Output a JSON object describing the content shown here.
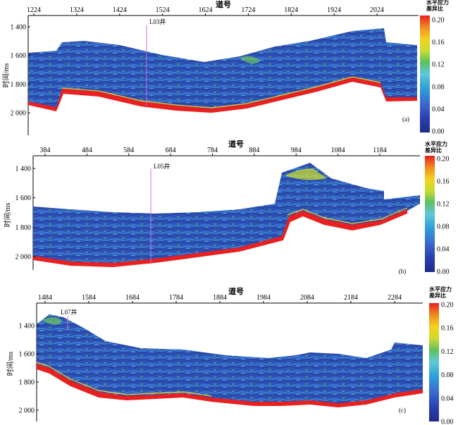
{
  "colors": {
    "scale": [
      "#1e2a8a",
      "#2a3fb0",
      "#3a6ad0",
      "#2f9fd8",
      "#5fc8d8",
      "#5cc060",
      "#c8dc30",
      "#f5d020",
      "#f08a20",
      "#e82020"
    ]
  },
  "panels": [
    {
      "id": "a",
      "label": "(a)",
      "xlabel": "道号",
      "ylabel": "时间/ms",
      "xticks": [
        "1224",
        "1324",
        "1424",
        "1524",
        "1624",
        "1724",
        "1824",
        "1924",
        "2024"
      ],
      "yticks": [
        "1 400",
        "1 600",
        "1 800",
        "2 000"
      ],
      "well": "L03井",
      "colorbar_title": [
        "水平应力",
        "差异比"
      ],
      "colorbar_ticks": [
        "0.20",
        "0.16",
        "0.12",
        "0.08",
        "0.04",
        "0.00"
      ]
    },
    {
      "id": "b",
      "label": "(b)",
      "xlabel": "道号",
      "ylabel": "时间/ms",
      "xticks": [
        "384",
        "484",
        "584",
        "684",
        "784",
        "884",
        "984",
        "1084",
        "1184"
      ],
      "yticks": [
        "1 400",
        "1 600",
        "1 800",
        "2 000"
      ],
      "well": "L05井",
      "colorbar_title": [
        "水平应力",
        "差异比"
      ],
      "colorbar_ticks": [
        "0.20",
        "0.16",
        "0.12",
        "0.08",
        "0.04",
        "0.00"
      ]
    },
    {
      "id": "c",
      "label": "(c)",
      "xlabel": "道号",
      "ylabel": "时间/ms",
      "xticks": [
        "1484",
        "1584",
        "1684",
        "1784",
        "1884",
        "1984",
        "2084",
        "2184",
        "2284"
      ],
      "yticks": [
        "1 400",
        "1 600",
        "1 800",
        "2 000"
      ],
      "well": "L07井",
      "colorbar_title": [
        "水平应力",
        "差异比"
      ],
      "colorbar_ticks": [
        "0.20",
        "0.16",
        "0.12",
        "0.08",
        "0.04",
        "0.00"
      ]
    }
  ]
}
